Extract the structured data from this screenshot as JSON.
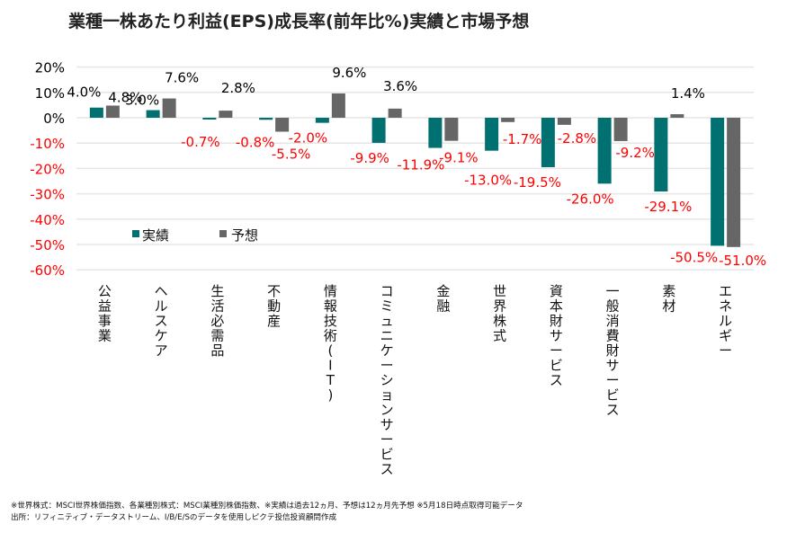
{
  "title": "業種一株あたり利益(EPS)成長率(前年比%)実績と市場予想",
  "notes": [
    "※世界株式：MSCI世界株価指数、各業種別株式：MSCI業種別株価指数、※実績は過去12ヵ月、予想は12ヵ月先予想 ※5月18日時点取得可能データ",
    "出所：リフィニティブ・データストリーム、I/B/E/Sのデータを使用しピクテ投信投資顧問作成"
  ],
  "colors": {
    "actual": "#007070",
    "forecast": "#666666",
    "positive_label": "#000000",
    "negative_label": "#ff0000",
    "grid": "#e6e6e6"
  },
  "chart_data": {
    "type": "bar",
    "title": "業種一株あたり利益(EPS)成長率(前年比%)実績と市場予想",
    "xlabel": "",
    "ylabel": "",
    "ylim": [
      -60,
      20
    ],
    "yticks": [
      20,
      10,
      0,
      -10,
      -20,
      -30,
      -40,
      -50,
      -60
    ],
    "ytick_labels": [
      "20%",
      "10%",
      "0%",
      "-10%",
      "-20%",
      "-30%",
      "-40%",
      "-50%",
      "-60%"
    ],
    "grid": true,
    "legend_position": "center-left",
    "categories": [
      "公益事業",
      "ヘルスケア",
      "生活必需品",
      "不動産",
      "情報技術(IT)",
      "コミュニケーションサービス",
      "金融",
      "世界株式",
      "資本財サービス",
      "一般消費財サービス",
      "素材",
      "エネルギー"
    ],
    "series": [
      {
        "name": "実績",
        "values": [
          4.0,
          3.0,
          -0.7,
          -0.8,
          -2.0,
          -9.9,
          -11.9,
          -13.0,
          -19.5,
          -26.0,
          -29.1,
          -50.5
        ],
        "labels": [
          "4.0%",
          "3.0%",
          "-0.7%",
          "-0.8%",
          "-2.0%",
          "-9.9%",
          "-11.9%",
          "-13.0%",
          "-19.5%",
          "-26.0%",
          "-29.1%",
          "-50.5%"
        ]
      },
      {
        "name": "予想",
        "values": [
          4.8,
          7.6,
          2.8,
          -5.5,
          9.6,
          3.6,
          -9.1,
          -1.7,
          -2.8,
          -9.2,
          1.4,
          -51.0
        ],
        "labels": [
          "4.8%",
          "7.6%",
          "2.8%",
          "-5.5%",
          "9.6%",
          "3.6%",
          "-9.1%",
          "-1.7%",
          "-2.8%",
          "-9.2%",
          "1.4%",
          "-51.0%"
        ]
      }
    ]
  }
}
